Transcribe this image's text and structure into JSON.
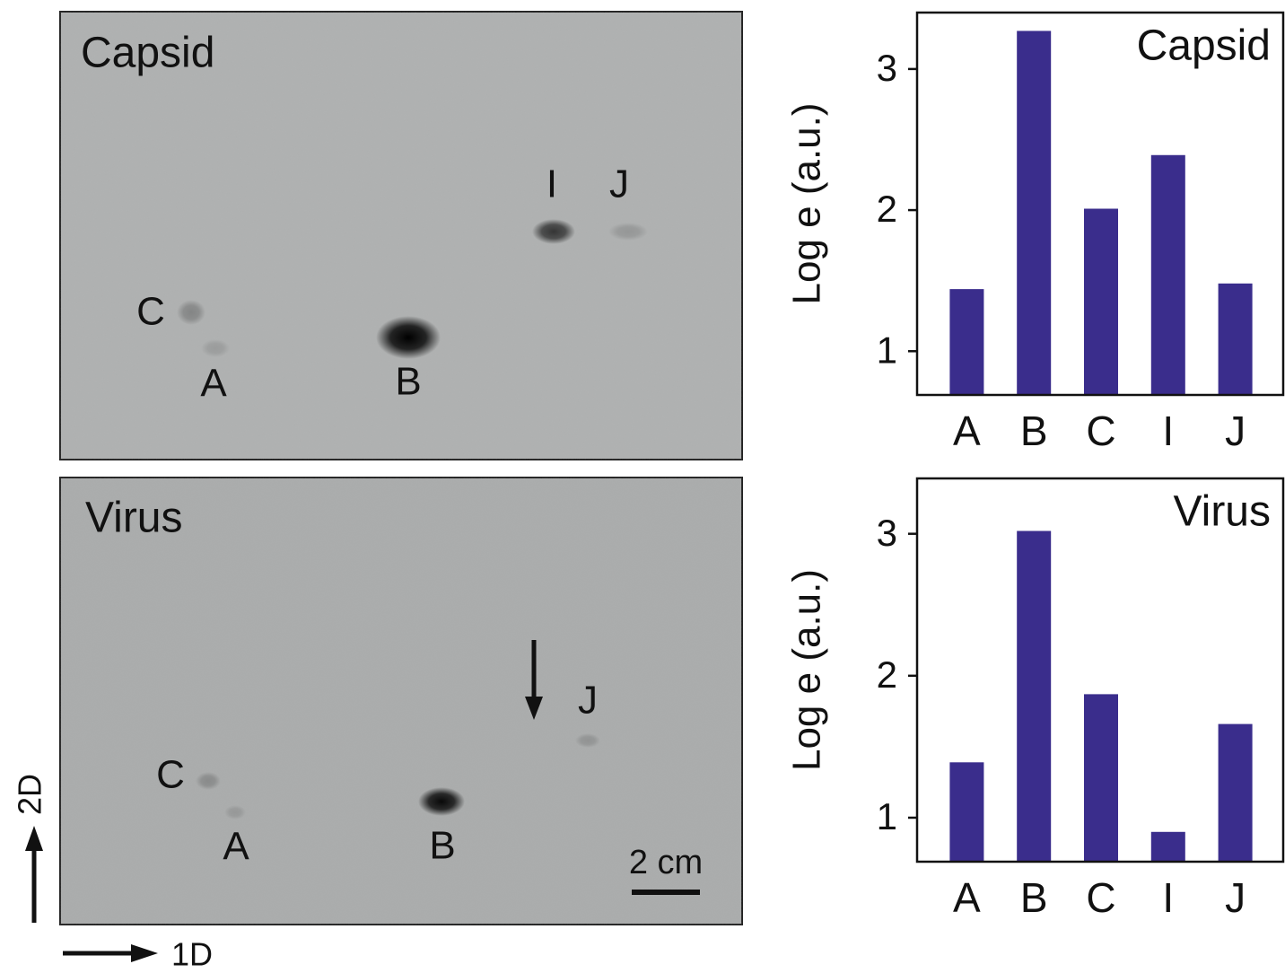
{
  "chart_data": [
    {
      "type": "bar",
      "title": "Capsid",
      "y_label": "Log e (a.u.)",
      "categories": [
        "A",
        "B",
        "C",
        "I",
        "J"
      ],
      "values": [
        1.44,
        3.27,
        2.01,
        2.39,
        1.48
      ],
      "color": "#3a2d8c",
      "ylim": [
        0.69,
        3.4
      ],
      "yticks": [
        1,
        2,
        3
      ]
    },
    {
      "type": "bar",
      "title": "Virus",
      "y_label": "Log e (a.u.)",
      "categories": [
        "A",
        "B",
        "C",
        "I",
        "J"
      ],
      "values": [
        1.39,
        3.02,
        1.87,
        0.9,
        1.66
      ],
      "color": "#3a2d8c",
      "ylim": [
        0.69,
        3.39
      ],
      "yticks": [
        1,
        2,
        3
      ]
    }
  ],
  "gels": [
    {
      "title": "Capsid",
      "spot_labels": [
        "C",
        "A",
        "B",
        "I",
        "J"
      ]
    },
    {
      "title": "Virus",
      "spot_labels": [
        "C",
        "A",
        "B",
        "J"
      ],
      "scale_bar": "2 cm"
    }
  ],
  "direction_labels": {
    "vertical": "2D",
    "horizontal": "1D"
  }
}
